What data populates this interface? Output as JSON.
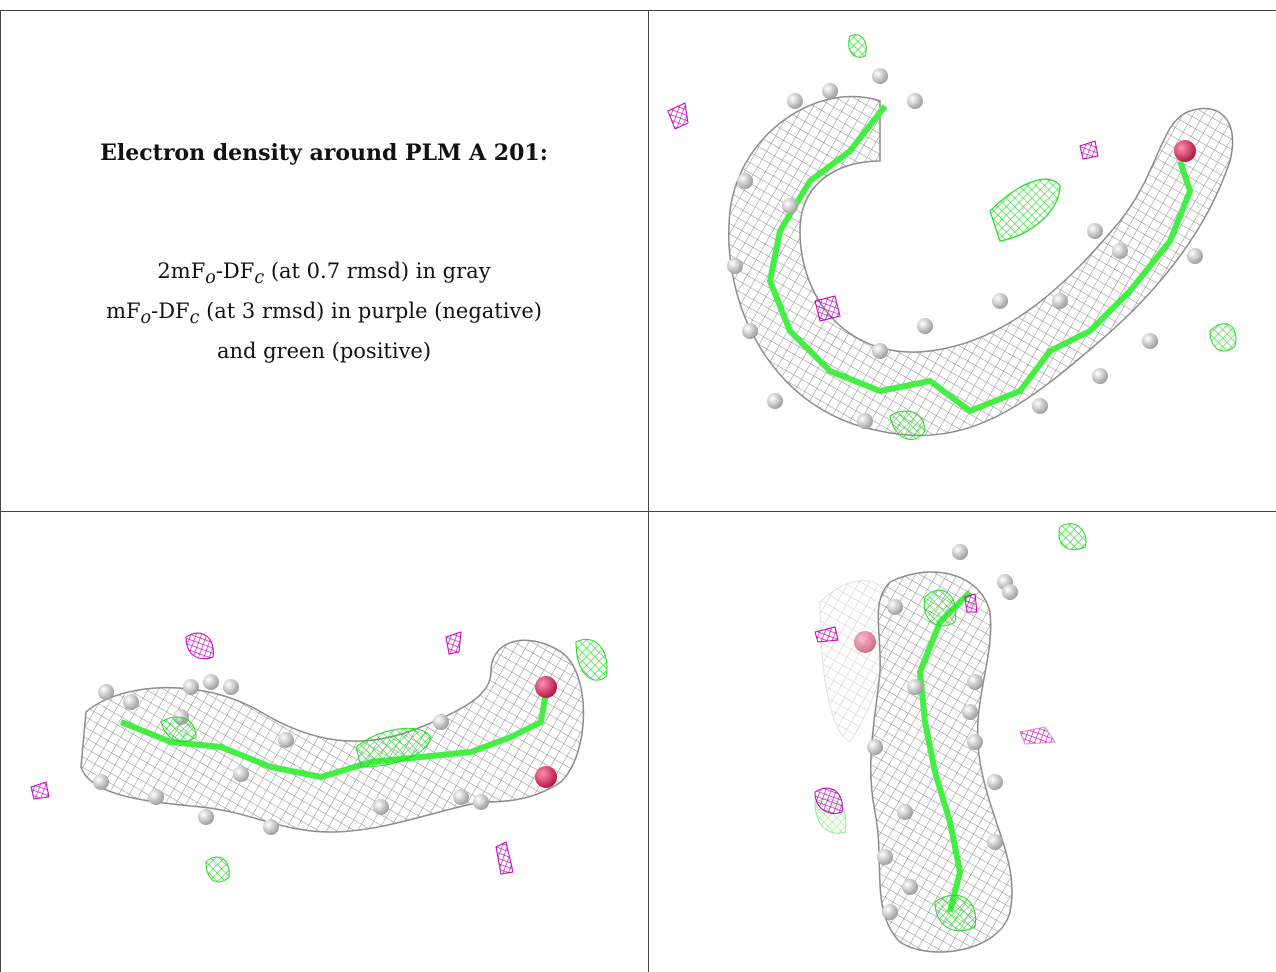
{
  "caption": {
    "title": "Electron density around PLM A 201:",
    "line1": {
      "pre": "2mF",
      "sub1": "o",
      "mid": "-DF",
      "sub2": "c",
      "post": " (at 0.7 rmsd) in gray"
    },
    "line2": {
      "pre": "mF",
      "sub1": "o",
      "mid": "-DF",
      "sub2": "c",
      "post": " (at 3 rmsd) in purple (negative)"
    },
    "line3": "and green (positive)"
  },
  "colors": {
    "mesh_gray": "#8c8c8c",
    "mesh_purple": "#c000c0",
    "mesh_green": "#22dd22",
    "carbon": "#44ee44",
    "hydrogen": "#e6e6e6",
    "oxygen": "#e0245e"
  },
  "panels": [
    {
      "id": "view-top-right",
      "description_icon": "molecule-view"
    },
    {
      "id": "view-bottom-left",
      "description_icon": "molecule-view"
    },
    {
      "id": "view-bottom-right",
      "description_icon": "molecule-view"
    }
  ]
}
